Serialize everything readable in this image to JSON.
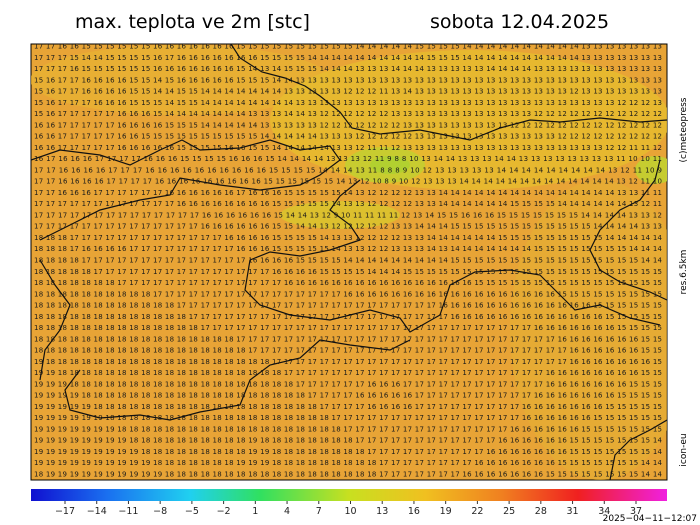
{
  "header": {
    "title": "max. teplota ve 2m [stc]",
    "date": "sobota 12.04.2025"
  },
  "map": {
    "rows": [
      "17 17 16 16 15 15 15 15 15 15 16 16 16 16 16 16 16 15 15 15 15 15 15 15 15 15 15 14 14 14 14 14 15 15 15 15 14 14 14 14 14 14 14 14 14 14 13 13 13 13 13 13 13",
      "17 17 17 15 14 14 15 15 15 15 16 17 16 16 16 16 16 16 16 15 15 15 15 14 14 14 14 14 14 14 14 14 14 15 15 15 14 14 14 14 14 14 14 14 14 14 13 13 13 13 13 13 13",
      "17 17 17 16 15 15 15 15 15 15 16 16 16 16 16 16 16 15 14 13 14 15 15 15 14 14 14 13 13 13 14 14 14 13 13 13 13 13 14 14 14 14 13 13 13 13 13 13 13 13 13 13 13",
      "15 16 17 17 16 16 16 16 15 15 14 15 16 16 16 16 16 15 15 15 14 14 13 13 13 13 13 13 13 13 13 13 13 13 13 13 13 13 13 13 13 13 13 13 13 13 13 13 13 13 13 13 13",
      "15 16 17 17 16 16 16 16 15 15 14 14 15 15 14 14 14 14 14 14 14 13 13 13 13 13 12 12 12 11 13 14 13 13 13 13 13 13 13 13 13 13 13 13 13 12 13 13 13 13 13 13 13",
      "15 16 17 17 17 16 16 16 15 15 15 14 15 15 14 14 14 14 14 14 14 14 13 13 13 13 13 13 13 13 13 13 13 13 13 13 13 13 13 13 13 13 13 13 13 13 13 13 13 12 12 12 13",
      "15 16 17 17 17 17 17 16 16 16 15 14 14 14 14 14 14 14 13 13 13 14 14 13 12 12 12 12 12 12 13 13 13 13 13 13 13 13 13 13 13 13 12 12 12 12 12 12 12 12 12 12 12",
      "16 16 17 17 17 17 17 16 16 16 16 15 15 15 14 14 14 14 14 13 13 13 13 13 12 12 12 12 12 12 12 13 13 13 13 13 13 13 13 13 12 12 12 12 12 12 12 12 12 12 12 12 12",
      "16 16 17 17 17 17 17 16 16 15 15 15 15 15 15 15 15 15 15 14 14 14 14 14 13 13 13 12 12 12 12 12 13 13 13 13 13 13 13 13 13 13 13 13 12 12 12 12 12 12 12 12 12",
      "16 16 17 17 17 17 17 16 16 16 16 16 15 15 15 15 16 16 15 15 14 14 14 14 14 13 13 12 11 11 12 13 13 13 13 13 13 13 13 13 13 13 13 13 13 13 13 13 12 12 11 11 12",
      "16 17 16 16 16 17 17 17 17 16 16 16 15 15 15 15 16 16 16 15 14 14 14 14 13 13 13 12 11 9 8 8 10 13 14 14 13 13 13 14 14 13 13 13 13 13 13 13 13 11 10 10 11",
      "17 17 16 16 16 16 17 17 17 16 16 16 16 16 16 16 16 16 16 15 15 15 15 14 14 14 13 11 8 8 8 9 10 12 13 13 13 13 13 14 14 14 14 14 14 14 14 14 13 12 11 10 9",
      "17 17 16 16 16 16 17 17 17 17 16 16 16 16 16 16 16 16 16 15 15 15 15 15 15 14 13 12 10 8 9 10 12 13 13 13 14 14 14 14 14 14 14 14 14 14 14 14 14 13 12 11 10",
      "17 17 16 16 16 17 17 17 17 17 17 16 16 16 16 16 16 17 16 16 16 15 15 15 15 15 14 13 12 12 12 12 13 13 14 14 14 14 14 14 14 14 14 14 14 14 14 14 14 13 13 11 11",
      "17 17 17 17 17 17 17 17 17 17 17 17 16 16 16 16 16 16 16 16 15 15 15 15 15 14 13 13 12 12 12 12 13 13 14 14 14 14 14 14 15 15 15 15 14 14 14 14 14 14 13 12 11",
      "17 17 17 17 17 17 17 17 17 17 17 17 17 17 16 16 16 16 16 16 15 14 14 13 12 9 10 11 11 11 11 12 13 14 15 15 16 16 16 15 15 15 15 15 15 15 14 14 14 14 13 13 12",
      "17 17 17 17 17 17 17 17 17 17 17 17 17 17 16 16 16 16 16 16 15 15 14 14 13 12 12 12 12 12 13 13 14 14 14 15 15 15 15 15 15 15 15 15 15 15 15 14 14 14 14 13 13",
      "18 18 18 17 17 17 17 17 17 17 17 17 17 17 17 17 16 16 16 16 15 15 15 15 14 13 13 12 12 12 12 13 13 14 14 14 14 14 14 15 15 15 15 15 15 15 15 15 14 14 14 14 14",
      "18 18 18 17 16 16 16 16 17 17 17 17 17 17 17 17 17 16 16 16 15 15 15 15 15 14 13 13 12 12 13 13 13 14 13 14 14 14 14 14 14 14 15 15 15 15 15 15 15 15 14 14 14",
      "18 18 18 18 17 17 17 17 17 17 17 17 17 17 17 17 17 17 16 16 16 16 15 15 15 15 14 14 14 14 14 14 14 14 14 15 15 15 15 15 15 15 15 15 15 15 15 15 15 15 15 14 14",
      "18 18 18 18 18 17 17 17 17 17 17 17 17 17 17 17 17 17 17 17 16 16 16 16 15 15 15 15 14 14 14 15 15 15 15 15 15 15 15 15 15 15 15 15 15 15 15 15 15 15 15 15 15",
      "18 18 18 18 18 18 18 17 17 17 17 17 17 17 17 17 17 17 17 17 17 16 16 16 16 16 16 16 16 16 16 16 16 16 16 16 16 15 15 15 15 15 15 15 15 15 15 15 15 15 15 15 15",
      "18 18 18 18 18 18 18 18 18 18 17 17 17 17 17 17 17 17 17 17 17 17 17 17 17 17 16 16 16 16 16 16 16 16 16 16 16 16 16 16 16 16 16 16 15 15 15 15 15 15 15 15 15",
      "18 18 18 18 18 18 18 18 18 18 18 18 17 17 17 17 17 17 17 17 17 17 17 17 17 17 17 17 17 17 17 17 17 17 16 16 16 16 16 16 16 16 16 16 16 16 16 15 15 15 15 15 15",
      "18 18 18 18 18 18 18 18 18 18 18 18 18 17 17 17 17 17 17 17 17 17 17 17 17 17 17 17 17 17 17 17 17 17 17 16 16 16 16 16 16 16 16 16 16 16 16 16 15 15 15 15 15",
      "18 18 18 18 18 18 18 18 18 18 18 18 18 18 17 17 17 17 17 17 17 17 17 17 17 17 17 17 17 17 17 17 17 17 17 17 17 17 17 17 17 17 16 16 16 16 16 16 16 15 15 15 15",
      "18 18 18 18 18 18 18 18 18 18 18 18 18 18 18 18 18 17 17 17 17 17 17 17 17 17 17 17 17 17 17 17 17 17 17 17 17 17 17 17 17 17 17 17 16 16 16 16 16 16 16 15 15",
      "18 18 18 18 18 18 18 18 18 18 18 18 18 18 18 18 18 18 17 17 17 17 17 17 17 17 17 17 17 17 17 17 17 17 17 17 17 17 17 17 17 17 17 17 17 16 16 16 16 16 16 15 15",
      "19 18 18 18 18 18 18 18 18 18 18 18 18 18 18 18 18 18 18 18 17 17 17 17 17 17 17 17 17 17 17 17 17 17 17 17 17 17 17 17 17 17 17 17 17 16 16 16 16 16 16 16 15",
      "19 19 18 18 18 18 18 18 18 18 18 18 18 18 18 18 18 18 18 18 18 17 17 17 17 17 17 17 17 17 17 17 17 17 17 17 17 17 17 17 17 17 17 16 16 16 16 16 16 16 16 15 15",
      "19 19 19 18 18 18 18 18 18 18 18 18 18 18 18 18 18 18 18 18 18 18 17 17 17 17 17 17 16 16 16 17 17 17 17 17 17 17 17 17 17 17 17 16 16 16 16 16 16 16 15 15 15",
      "19 19 19 19 18 18 18 18 18 18 18 18 18 18 18 18 18 18 18 18 18 18 18 17 17 17 17 16 16 16 16 16 17 17 17 17 17 17 17 17 17 17 16 16 16 16 16 16 16 15 15 15 15",
      "19 19 19 19 19 18 18 18 18 18 18 18 18 18 18 18 18 18 18 18 18 18 18 18 17 17 17 17 16 16 16 16 17 17 17 17 17 17 17 17 17 16 16 16 16 16 16 16 15 15 15 15 15",
      "19 19 19 19 19 19 18 18 18 18 18 18 18 18 18 18 18 18 18 18 18 18 18 18 18 17 17 17 17 17 17 17 17 17 17 17 17 17 17 17 17 16 16 16 16 16 16 15 15 15 15 15 15",
      "19 19 19 19 19 19 19 18 18 18 18 18 18 18 18 18 18 18 18 18 18 18 18 18 18 18 17 17 17 17 17 17 17 17 17 17 17 17 17 17 16 16 16 16 16 16 15 15 15 15 15 15 15",
      "19 19 19 19 19 19 19 19 18 18 18 18 18 18 18 18 18 18 19 18 18 18 18 18 18 18 18 17 17 17 17 17 17 17 17 17 17 17 17 16 16 16 16 16 16 15 15 15 15 15 15 15 14",
      "19 19 19 19 19 19 19 19 19 18 18 18 18 18 18 18 18 18 19 19 18 18 18 18 18 18 18 18 17 17 17 17 17 17 17 17 17 17 16 16 16 16 16 16 16 15 15 15 15 15 15 15 14",
      "19 19 19 19 19 19 19 19 19 19 18 18 18 18 18 18 18 19 19 19 18 18 18 18 18 18 18 18 18 17 17 17 17 17 17 17 17 16 16 16 16 16 16 16 15 15 15 15 15 15 15 14 14",
      "18 19 19 19 19 19 19 19 19 19 19 18 18 18 18 18 18 18 18 18 18 18 18 18 18 18 18 18 18 17 17 17 17 17 17 17 16 16 16 16 16 16 16 15 15 15 15 15 15 15 15 14 14"
    ]
  },
  "side_labels": {
    "copyright": "(c)meteopress",
    "resolution": "res.6.5km",
    "model": "icon-eu"
  },
  "colorbar": {
    "ticks": [
      "−17",
      "−14",
      "−11",
      "−8",
      "−5",
      "−2",
      "1",
      "4",
      "7",
      "10",
      "13",
      "16",
      "19",
      "22",
      "25",
      "28",
      "31",
      "34",
      "37"
    ]
  },
  "timestamp": "2025−04−11−12:07"
}
